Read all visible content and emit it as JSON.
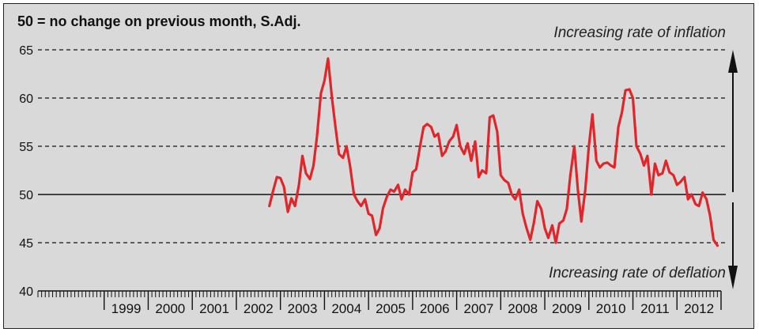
{
  "chart_data": {
    "type": "line",
    "title": "50 = no change on previous month, S.Adj.",
    "annotation_top": "Increasing rate of inflation",
    "annotation_bottom": "Increasing rate of deflation",
    "xlabel": "",
    "ylabel": "",
    "ylim": [
      40,
      65
    ],
    "yticks": [
      40,
      45,
      50,
      55,
      60,
      65
    ],
    "grid": "horizontal dashed",
    "reference_line": 50,
    "years": [
      "1999",
      "2000",
      "2001",
      "2002",
      "2003",
      "2004",
      "2005",
      "2006",
      "2007",
      "2008",
      "2009",
      "2010",
      "2011",
      "2012"
    ],
    "x_start_year": 1998,
    "x_end_year": 2013,
    "series": [
      {
        "color": "#e0262b",
        "points": [
          [
            2002.75,
            48.8
          ],
          [
            2002.83,
            50.3
          ],
          [
            2002.92,
            51.8
          ],
          [
            2003.0,
            51.7
          ],
          [
            2003.08,
            50.8
          ],
          [
            2003.17,
            48.2
          ],
          [
            2003.25,
            49.6
          ],
          [
            2003.33,
            48.8
          ],
          [
            2003.42,
            51.0
          ],
          [
            2003.5,
            54.0
          ],
          [
            2003.58,
            52.2
          ],
          [
            2003.67,
            51.6
          ],
          [
            2003.75,
            53.0
          ],
          [
            2003.83,
            56.0
          ],
          [
            2003.92,
            60.5
          ],
          [
            2004.0,
            61.8
          ],
          [
            2004.08,
            64.1
          ],
          [
            2004.17,
            60.0
          ],
          [
            2004.25,
            57.0
          ],
          [
            2004.33,
            54.2
          ],
          [
            2004.42,
            53.8
          ],
          [
            2004.5,
            55.0
          ],
          [
            2004.58,
            53.0
          ],
          [
            2004.67,
            50.0
          ],
          [
            2004.75,
            49.3
          ],
          [
            2004.83,
            48.8
          ],
          [
            2004.92,
            49.5
          ],
          [
            2005.0,
            48.0
          ],
          [
            2005.08,
            47.8
          ],
          [
            2005.17,
            45.8
          ],
          [
            2005.25,
            46.5
          ],
          [
            2005.33,
            48.6
          ],
          [
            2005.42,
            49.8
          ],
          [
            2005.5,
            50.5
          ],
          [
            2005.58,
            50.3
          ],
          [
            2005.67,
            51.0
          ],
          [
            2005.75,
            49.5
          ],
          [
            2005.83,
            50.5
          ],
          [
            2005.92,
            50.0
          ],
          [
            2006.0,
            52.3
          ],
          [
            2006.08,
            52.6
          ],
          [
            2006.17,
            55.0
          ],
          [
            2006.25,
            57.0
          ],
          [
            2006.33,
            57.3
          ],
          [
            2006.42,
            57.0
          ],
          [
            2006.5,
            56.0
          ],
          [
            2006.58,
            56.3
          ],
          [
            2006.67,
            54.0
          ],
          [
            2006.75,
            54.5
          ],
          [
            2006.83,
            55.5
          ],
          [
            2006.92,
            56.0
          ],
          [
            2007.0,
            57.2
          ],
          [
            2007.08,
            55.0
          ],
          [
            2007.17,
            54.2
          ],
          [
            2007.25,
            55.3
          ],
          [
            2007.33,
            53.5
          ],
          [
            2007.42,
            55.5
          ],
          [
            2007.5,
            51.8
          ],
          [
            2007.58,
            52.5
          ],
          [
            2007.67,
            52.2
          ],
          [
            2007.75,
            58.0
          ],
          [
            2007.83,
            58.2
          ],
          [
            2007.92,
            56.5
          ],
          [
            2008.0,
            52.0
          ],
          [
            2008.08,
            51.5
          ],
          [
            2008.17,
            51.2
          ],
          [
            2008.25,
            50.0
          ],
          [
            2008.33,
            49.5
          ],
          [
            2008.42,
            50.5
          ],
          [
            2008.5,
            48.0
          ],
          [
            2008.58,
            46.6
          ],
          [
            2008.67,
            45.3
          ],
          [
            2008.75,
            47.0
          ],
          [
            2008.83,
            49.3
          ],
          [
            2008.92,
            48.5
          ],
          [
            2009.0,
            46.5
          ],
          [
            2009.08,
            45.5
          ],
          [
            2009.17,
            46.8
          ],
          [
            2009.25,
            45.0
          ],
          [
            2009.33,
            47.0
          ],
          [
            2009.42,
            47.3
          ],
          [
            2009.5,
            48.5
          ],
          [
            2009.58,
            52.0
          ],
          [
            2009.67,
            55.0
          ],
          [
            2009.75,
            50.5
          ],
          [
            2009.83,
            47.2
          ],
          [
            2009.92,
            50.5
          ],
          [
            2010.0,
            55.0
          ],
          [
            2010.08,
            58.3
          ],
          [
            2010.17,
            53.5
          ],
          [
            2010.25,
            52.8
          ],
          [
            2010.33,
            53.2
          ],
          [
            2010.42,
            53.3
          ],
          [
            2010.5,
            53.0
          ],
          [
            2010.58,
            52.8
          ],
          [
            2010.67,
            57.0
          ],
          [
            2010.75,
            58.5
          ],
          [
            2010.83,
            60.8
          ],
          [
            2010.92,
            60.9
          ],
          [
            2011.0,
            60.0
          ],
          [
            2011.08,
            55.0
          ],
          [
            2011.17,
            54.2
          ],
          [
            2011.25,
            53.0
          ],
          [
            2011.33,
            54.0
          ],
          [
            2011.42,
            50.0
          ],
          [
            2011.5,
            53.2
          ],
          [
            2011.58,
            52.0
          ],
          [
            2011.67,
            52.2
          ],
          [
            2011.75,
            53.5
          ],
          [
            2011.83,
            52.3
          ],
          [
            2011.92,
            52.0
          ],
          [
            2012.0,
            51.0
          ],
          [
            2012.08,
            51.3
          ],
          [
            2012.17,
            51.8
          ],
          [
            2012.25,
            49.5
          ],
          [
            2012.33,
            50.0
          ],
          [
            2012.42,
            49.0
          ],
          [
            2012.5,
            48.8
          ],
          [
            2012.58,
            50.2
          ],
          [
            2012.67,
            49.5
          ],
          [
            2012.75,
            47.8
          ],
          [
            2012.83,
            45.3
          ],
          [
            2012.92,
            44.7
          ]
        ]
      }
    ]
  }
}
